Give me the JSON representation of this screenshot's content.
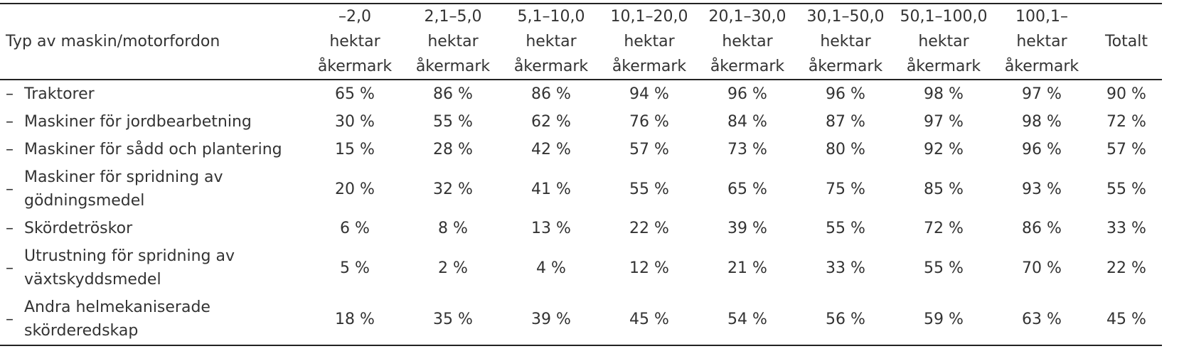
{
  "table": {
    "header": {
      "type": "Typ av maskin/motorfordon",
      "columns": [
        [
          "–2,0",
          "hektar",
          "åkermark"
        ],
        [
          "2,1–5,0",
          "hektar",
          "åkermark"
        ],
        [
          "5,1–10,0",
          "hektar",
          "åkermark"
        ],
        [
          "10,1–20,0",
          "hektar",
          "åkermark"
        ],
        [
          "20,1–30,0",
          "hektar",
          "åkermark"
        ],
        [
          "30,1–50,0",
          "hektar",
          "åkermark"
        ],
        [
          "50,1–100,0",
          "hektar",
          "åkermark"
        ],
        [
          "100,1–",
          "hektar",
          "åkermark"
        ]
      ],
      "total": "Totalt"
    },
    "dash": "–",
    "rows": [
      {
        "label": "Traktorer",
        "values": [
          "65 %",
          "86 %",
          "86 %",
          "94 %",
          "96 %",
          "96 %",
          "98 %",
          "97 %"
        ],
        "total": "90 %"
      },
      {
        "label": "Maskiner för jordbearbetning",
        "values": [
          "30 %",
          "55 %",
          "62 %",
          "76 %",
          "84 %",
          "87 %",
          "97 %",
          "98 %"
        ],
        "total": "72 %"
      },
      {
        "label": "Maskiner för sådd och plantering",
        "values": [
          "15 %",
          "28 %",
          "42 %",
          "57 %",
          "73 %",
          "80 %",
          "92 %",
          "96 %"
        ],
        "total": "57 %"
      },
      {
        "label": "Maskiner för spridning av gödningsmedel",
        "values": [
          "20 %",
          "32 %",
          "41 %",
          "55 %",
          "65 %",
          "75 %",
          "85 %",
          "93 %"
        ],
        "total": "55 %"
      },
      {
        "label": "Skördetröskor",
        "values": [
          "6 %",
          "8 %",
          "13 %",
          "22 %",
          "39 %",
          "55 %",
          "72 %",
          "86 %"
        ],
        "total": "33 %"
      },
      {
        "label": "Utrustning för spridning av växtskyddsmedel",
        "values": [
          "5 %",
          "2 %",
          "4 %",
          "12 %",
          "21 %",
          "33 %",
          "55 %",
          "70 %"
        ],
        "total": "22 %"
      },
      {
        "label": "Andra helmekaniserade skörderedskap",
        "values": [
          "18 %",
          "35 %",
          "39 %",
          "45 %",
          "54 %",
          "56 %",
          "59 %",
          "63 %"
        ],
        "total": "45 %"
      }
    ]
  }
}
